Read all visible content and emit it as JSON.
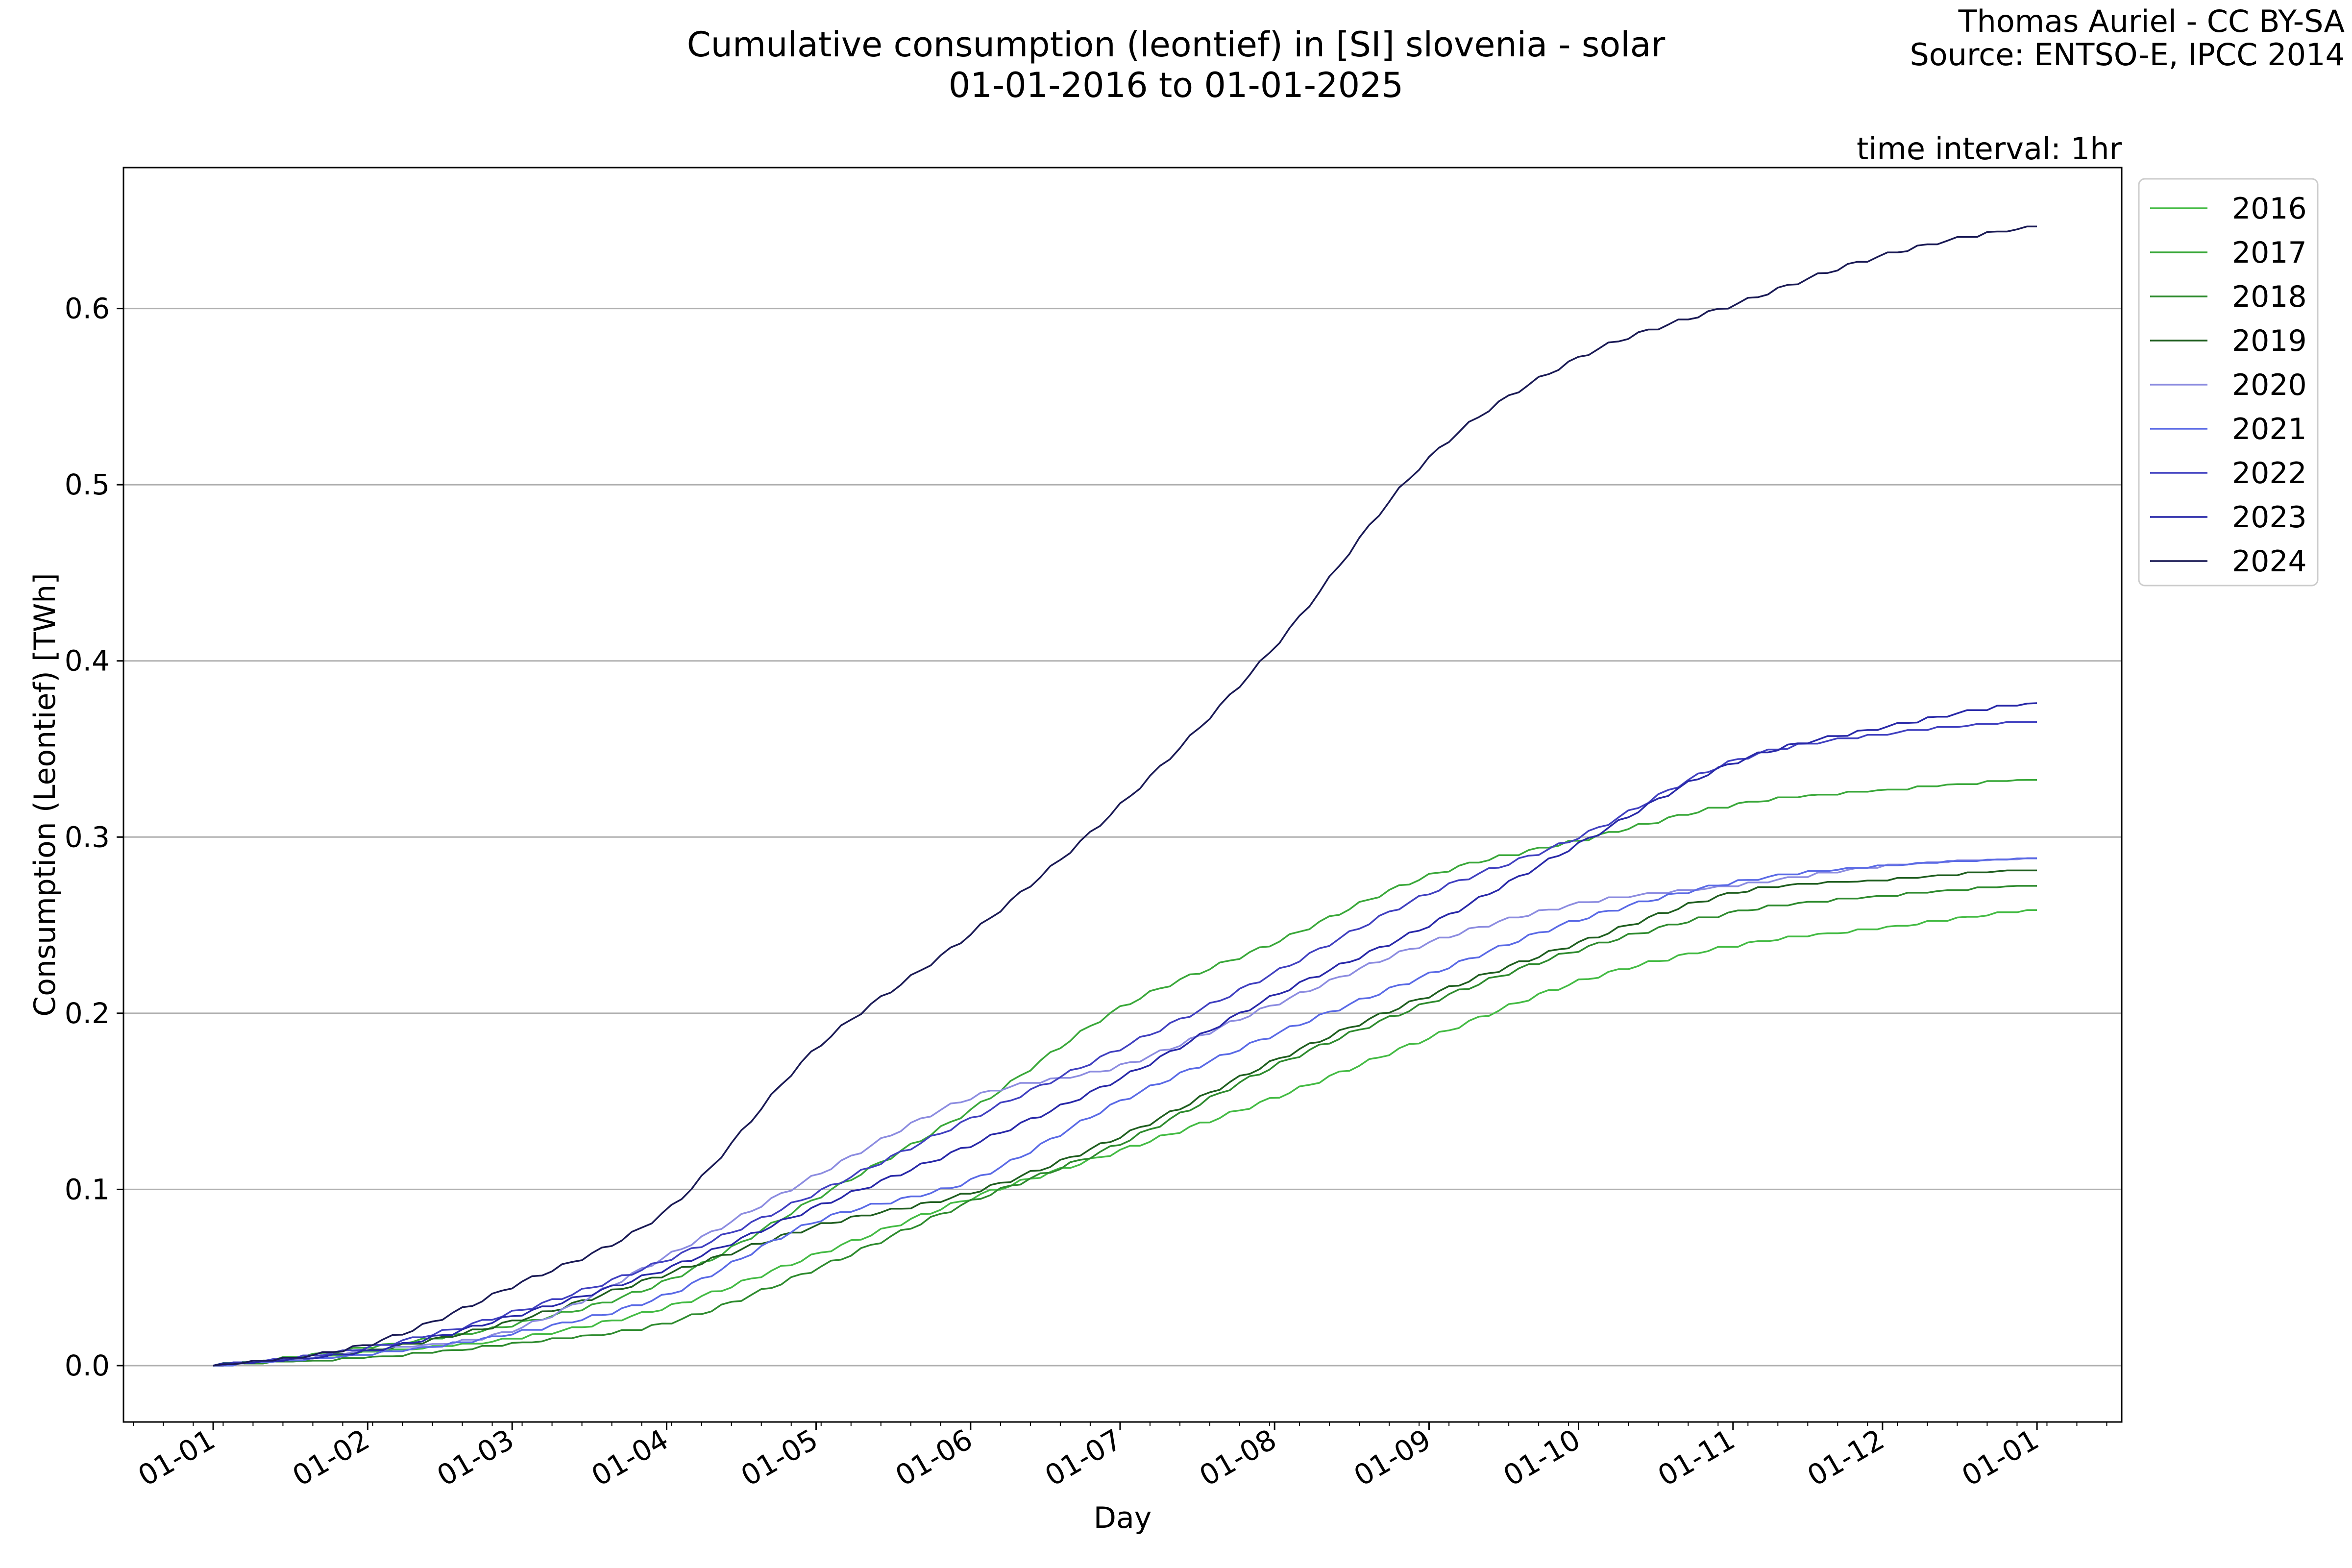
{
  "chart_data": {
    "type": "line",
    "title": "Cumulative consumption (leontief) in [SI] slovenia - solar",
    "subtitle": "01-01-2016 to 01-01-2025",
    "credit_line1": "Thomas Auriel - CC BY-SA",
    "credit_line2": "Source: ENTSO-E, IPCC 2014",
    "annotation": "time interval: 1hr",
    "xlabel": "Day",
    "ylabel": "Consumption (Leontief) [TWh]",
    "ylim": [
      -0.032,
      0.68
    ],
    "yticks": [
      0.0,
      0.1,
      0.2,
      0.3,
      0.4,
      0.5,
      0.6
    ],
    "ytick_labels": [
      "0.0",
      "0.1",
      "0.2",
      "0.3",
      "0.4",
      "0.5",
      "0.6"
    ],
    "xlim": [
      -18,
      383
    ],
    "xticks": [
      0,
      31,
      60,
      91,
      121,
      152,
      182,
      213,
      244,
      274,
      305,
      335,
      366
    ],
    "xtick_labels": [
      "01-01",
      "01-02",
      "01-03",
      "01-04",
      "01-05",
      "01-06",
      "01-07",
      "01-08",
      "01-09",
      "01-10",
      "01-11",
      "01-12",
      "01-01"
    ],
    "grid": "horizontal",
    "legend_position": "outside-top-right",
    "x": [
      0,
      31,
      60,
      91,
      121,
      152,
      182,
      213,
      244,
      274,
      305,
      335,
      366
    ],
    "series": [
      {
        "name": "2016",
        "color": "#44bb44",
        "values": [
          0,
          0.007,
          0.015,
          0.033,
          0.063,
          0.095,
          0.122,
          0.152,
          0.186,
          0.218,
          0.238,
          0.248,
          0.258
        ]
      },
      {
        "name": "2017",
        "color": "#3aa83a",
        "values": [
          0,
          0.01,
          0.023,
          0.048,
          0.095,
          0.145,
          0.203,
          0.24,
          0.278,
          0.298,
          0.318,
          0.326,
          0.332
        ]
      },
      {
        "name": "2018",
        "color": "#2e8b2e",
        "values": [
          0,
          0.004,
          0.012,
          0.024,
          0.055,
          0.093,
          0.126,
          0.17,
          0.206,
          0.236,
          0.257,
          0.266,
          0.272
        ]
      },
      {
        "name": "2019",
        "color": "#1f5e1f",
        "values": [
          0,
          0.008,
          0.025,
          0.052,
          0.079,
          0.098,
          0.13,
          0.173,
          0.21,
          0.24,
          0.268,
          0.275,
          0.281
        ]
      },
      {
        "name": "2020",
        "color": "#8c8ce0",
        "values": [
          0,
          0.008,
          0.02,
          0.062,
          0.108,
          0.152,
          0.17,
          0.205,
          0.24,
          0.262,
          0.272,
          0.283,
          0.287
        ]
      },
      {
        "name": "2021",
        "color": "#5a6ae6",
        "values": [
          0,
          0.006,
          0.018,
          0.04,
          0.082,
          0.105,
          0.15,
          0.188,
          0.222,
          0.253,
          0.274,
          0.283,
          0.287
        ]
      },
      {
        "name": "2022",
        "color": "#4040c0",
        "values": [
          0,
          0.01,
          0.03,
          0.06,
          0.098,
          0.14,
          0.18,
          0.223,
          0.268,
          0.3,
          0.343,
          0.358,
          0.365
        ]
      },
      {
        "name": "2023",
        "color": "#2828a8",
        "values": [
          0,
          0.008,
          0.028,
          0.055,
          0.09,
          0.125,
          0.163,
          0.21,
          0.25,
          0.296,
          0.342,
          0.362,
          0.376
        ]
      },
      {
        "name": "2024",
        "color": "#1a1a55",
        "values": [
          0,
          0.012,
          0.045,
          0.088,
          0.18,
          0.245,
          0.318,
          0.408,
          0.515,
          0.572,
          0.602,
          0.63,
          0.646
        ]
      }
    ]
  }
}
